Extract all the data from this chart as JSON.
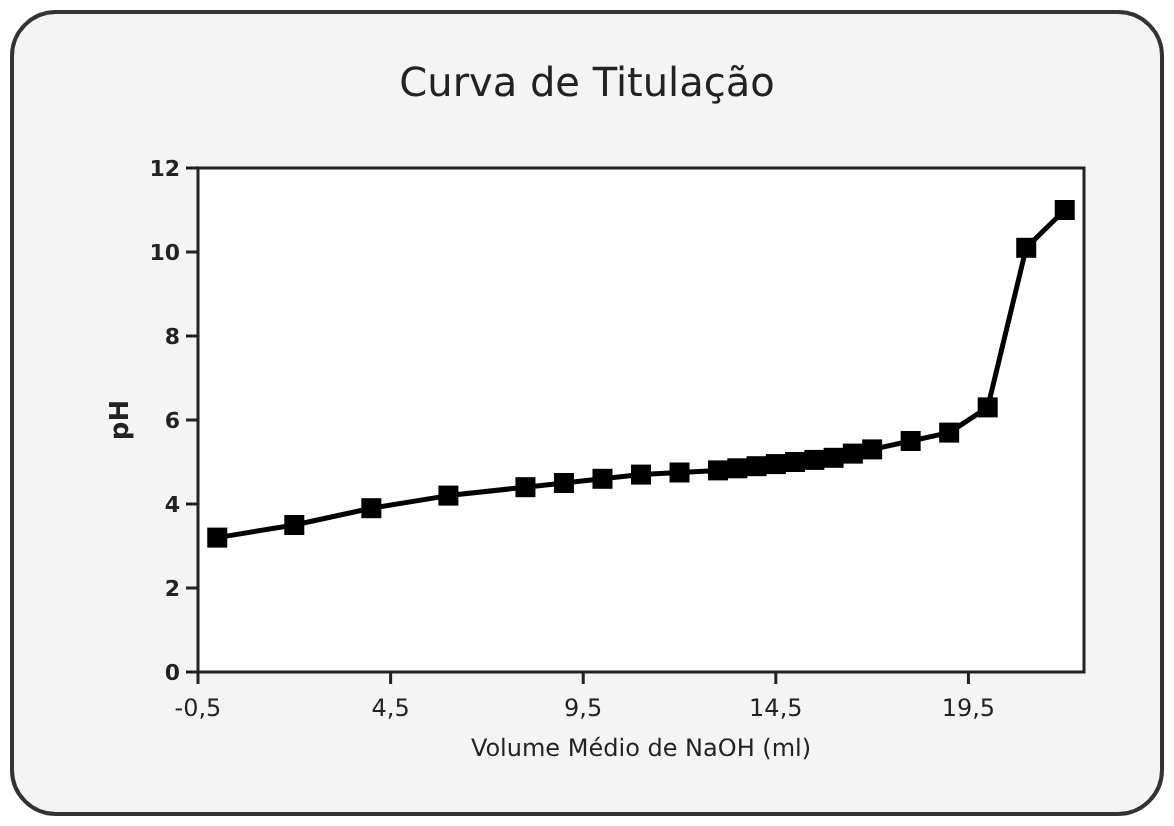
{
  "chart_data": {
    "type": "line",
    "title": "Curva de Titulação",
    "xlabel": "Volume Médio de NaOH (ml)",
    "ylabel": "pH",
    "x": [
      0,
      2,
      4,
      6,
      8,
      9,
      10,
      11,
      12,
      13,
      13.5,
      14,
      14.5,
      15,
      15.5,
      16,
      16.5,
      17,
      18,
      19,
      20,
      21,
      22
    ],
    "series": [
      {
        "color": "#000000",
        "values": [
          3.2,
          3.5,
          3.9,
          4.2,
          4.4,
          4.5,
          4.6,
          4.7,
          4.75,
          4.8,
          4.85,
          4.9,
          4.95,
          5.0,
          5.05,
          5.1,
          5.2,
          5.3,
          5.5,
          5.7,
          6.3,
          10.1,
          11.0
        ]
      }
    ],
    "xlim": [
      -0.5,
      22.5
    ],
    "xticks": [
      {
        "value": -0.5,
        "label": "-0,5"
      },
      {
        "value": 4.5,
        "label": "4,5"
      },
      {
        "value": 9.5,
        "label": "9,5"
      },
      {
        "value": 14.5,
        "label": "14,5"
      },
      {
        "value": 19.5,
        "label": "19,5"
      }
    ],
    "ylim": [
      0,
      12
    ],
    "yticks": [
      0,
      2,
      4,
      6,
      8,
      10,
      12
    ],
    "marker": "square",
    "line_style": "solid",
    "grid": false
  }
}
